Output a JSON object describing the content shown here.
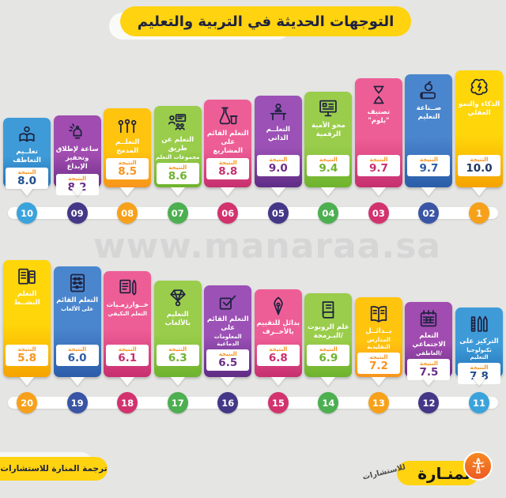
{
  "title": "التوجهات الحديثة في التربية والتعليم",
  "watermark": "www.manaraa.sa",
  "score_label": "النتيجة",
  "footer": {
    "credit": "ترجمة المنارة للاستشارات",
    "brand_name": "المنـارة",
    "brand_sub": "للاستشارات",
    "brand_logo_icon": "lighthouse-icon"
  },
  "colors": {
    "background": "#E5E5E4",
    "accent_yellow": "#FFD30F",
    "title_text": "#1E2240",
    "score_label_color": "#F7941D",
    "timeline_bar": "#FFFFFF"
  },
  "trends": [
    {
      "rank": 1,
      "badge": "1",
      "title": "الذكاء والنمو العقلي",
      "subtitle": "",
      "score": "10.0",
      "icon": "brain-icon",
      "theme": {
        "top": "#FFD60A",
        "bottom": "#F5A300",
        "score": "#1F3864",
        "badge": "#F7A11B"
      }
    },
    {
      "rank": 2,
      "badge": "02",
      "title": "صــناعة التعليم",
      "subtitle": "",
      "score": "9.7",
      "icon": "book-apple-icon",
      "theme": {
        "top": "#4A86CE",
        "bottom": "#2B5DA9",
        "score": "#2B5DA9",
        "badge": "#3A55A5"
      }
    },
    {
      "rank": 3,
      "badge": "03",
      "title": "تصنيف \"بلوم\"",
      "subtitle": "",
      "score": "9.7",
      "icon": "hourglass-icon",
      "theme": {
        "top": "#EE5E96",
        "bottom": "#C72F6F",
        "score": "#C72F6F",
        "badge": "#D2336E"
      }
    },
    {
      "rank": 4,
      "badge": "04",
      "title": "محو الأمية الرقمية",
      "subtitle": "",
      "score": "9.4",
      "icon": "monitor-icon",
      "theme": {
        "top": "#9ACD4B",
        "bottom": "#6EB32D",
        "score": "#6EB32D",
        "badge": "#4CAF50"
      }
    },
    {
      "rank": 5,
      "badge": "05",
      "title": "التعلــم الذاتي",
      "subtitle": "",
      "score": "9.0",
      "icon": "person-desk-icon",
      "theme": {
        "top": "#9C51B6",
        "bottom": "#5E2C86",
        "score": "#6A2D87",
        "badge": "#443787"
      }
    },
    {
      "rank": 6,
      "badge": "06",
      "title": "التعلم القائم على المشاريع",
      "subtitle": "",
      "score": "8.8",
      "icon": "flasks-icon",
      "theme": {
        "top": "#EE5E96",
        "bottom": "#C72F6F",
        "score": "#C72F6F",
        "badge": "#D2336E"
      }
    },
    {
      "rank": 7,
      "badge": "07",
      "title": "التعلم عن طريق",
      "subtitle": "مجموعات التعلم",
      "score": "8.6",
      "icon": "group-presentation-icon",
      "theme": {
        "top": "#9ACD4B",
        "bottom": "#6EB32D",
        "score": "#6EB32D",
        "badge": "#4CAF50"
      }
    },
    {
      "rank": 8,
      "badge": "08",
      "title": "التعلــم المدمج",
      "subtitle": "",
      "score": "8.5",
      "icon": "raised-hands-icon",
      "theme": {
        "top": "#FFC40E",
        "bottom": "#F7941D",
        "score": "#F7941D",
        "badge": "#F7A11B"
      }
    },
    {
      "rank": 9,
      "badge": "09",
      "title": "ساعة لإطلاق وتحفيز الإبداع",
      "subtitle": "",
      "score": "8.2",
      "icon": "alarm-bell-icon",
      "theme": {
        "top": "#A14CB0",
        "bottom": "#6A2D87",
        "score": "#6A2D87",
        "badge": "#443787"
      }
    },
    {
      "rank": 10,
      "badge": "10",
      "title": "تعلــيم التعاطف",
      "subtitle": "",
      "score": "8.0",
      "icon": "reading-book-icon",
      "theme": {
        "top": "#3E9BD8",
        "bottom": "#2472B8",
        "score": "#1F4E8C",
        "badge": "#3BA3DC"
      }
    },
    {
      "rank": 11,
      "badge": "11",
      "title": "التركيز على",
      "subtitle": "تكنولوجيا التعليم",
      "score": "7.8",
      "icon": "stationery-icon",
      "theme": {
        "top": "#3E9BD8",
        "bottom": "#2472B8",
        "score": "#1F4E8C",
        "badge": "#3BA3DC"
      }
    },
    {
      "rank": 12,
      "badge": "12",
      "title": "التعلم الاجتماعي",
      "subtitle": "/العاطفي",
      "score": "7.5",
      "icon": "calendar-icon",
      "theme": {
        "top": "#A14CB0",
        "bottom": "#6A2D87",
        "score": "#6A2D87",
        "badge": "#443787"
      }
    },
    {
      "rank": 13,
      "badge": "13",
      "title": "بــدائــل",
      "subtitle": "المدارس التقليدية",
      "score": "7.2",
      "icon": "open-book-icon",
      "theme": {
        "top": "#FFC40E",
        "bottom": "#F7941D",
        "score": "#F7941D",
        "badge": "#F7A11B"
      }
    },
    {
      "rank": 14,
      "badge": "14",
      "title": "علم الروبوت /البـرمجة",
      "subtitle": "",
      "score": "6.9",
      "icon": "book-icon",
      "theme": {
        "top": "#9ACD4B",
        "bottom": "#6EB32D",
        "score": "#6EB32D",
        "badge": "#4CAF50"
      }
    },
    {
      "rank": 15,
      "badge": "15",
      "title": "بدائل للتقييم بالأحــرف",
      "subtitle": "",
      "score": "6.8",
      "icon": "pen-nib-icon",
      "theme": {
        "top": "#EE5E96",
        "bottom": "#C72F6F",
        "score": "#C72F6F",
        "badge": "#D2336E"
      }
    },
    {
      "rank": 16,
      "badge": "16",
      "title": "التعلم القائم على",
      "subtitle": "المعلومات الدماغية",
      "score": "6.5",
      "icon": "checkbox-icon",
      "theme": {
        "top": "#9C51B6",
        "bottom": "#5E2C86",
        "score": "#6A2D87",
        "badge": "#443787"
      }
    },
    {
      "rank": 17,
      "badge": "17",
      "title": "التعليم بالألعاب",
      "subtitle": "",
      "score": "6.3",
      "icon": "medal-icon",
      "theme": {
        "top": "#9ACD4B",
        "bottom": "#6EB32D",
        "score": "#6EB32D",
        "badge": "#4CAF50"
      }
    },
    {
      "rank": 18,
      "badge": "18",
      "title": "خــوارزمـيات",
      "subtitle": "التعلم التكيفي",
      "score": "6.1",
      "icon": "notebook-pencil-icon",
      "theme": {
        "top": "#EE5E96",
        "bottom": "#C72F6F",
        "score": "#C72F6F",
        "badge": "#D2336E"
      }
    },
    {
      "rank": 19,
      "badge": "19",
      "title": "التعلم القائم",
      "subtitle": "على الألعاب",
      "score": "6.0",
      "icon": "abacus-icon",
      "theme": {
        "top": "#4A86CE",
        "bottom": "#2B5DA9",
        "score": "#2B5DA9",
        "badge": "#3A55A5"
      }
    },
    {
      "rank": 20,
      "badge": "20",
      "title": "التعلم النشــط",
      "subtitle": "",
      "score": "5.8",
      "icon": "tablet-book-icon",
      "theme": {
        "top": "#FFD60A",
        "bottom": "#F5A300",
        "score": "#F7941D",
        "badge": "#F7A11B"
      }
    }
  ],
  "chart_data": {
    "type": "bar",
    "title": "التوجهات الحديثة في التربية والتعليم",
    "categories": [
      "الذكاء والنمو العقلي",
      "صناعة التعليم",
      "تصنيف \"بلوم\"",
      "محو الأمية الرقمية",
      "التعلم الذاتي",
      "التعلم القائم على المشاريع",
      "التعلم عن طريق مجموعات التعلم",
      "التعلم المدمج",
      "ساعة لإطلاق وتحفيز الإبداع",
      "تعليم التعاطف",
      "التركيز على تكنولوجيا التعليم",
      "التعلم الاجتماعي/العاطفي",
      "بدائل المدارس التقليدية",
      "علم الروبوت/البرمجة",
      "بدائل للتقييم بالأحرف",
      "التعلم القائم على المعلومات الدماغية",
      "التعليم بالألعاب",
      "خوارزميات التعلم التكيفي",
      "التعلم القائم على الألعاب",
      "التعلم النشط"
    ],
    "values": [
      10.0,
      9.7,
      9.7,
      9.4,
      9.0,
      8.8,
      8.6,
      8.5,
      8.2,
      8.0,
      7.8,
      7.5,
      7.2,
      6.9,
      6.8,
      6.5,
      6.3,
      6.1,
      6.0,
      5.8
    ],
    "ranks": [
      1,
      2,
      3,
      4,
      5,
      6,
      7,
      8,
      9,
      10,
      11,
      12,
      13,
      14,
      15,
      16,
      17,
      18,
      19,
      20
    ],
    "xlabel": "",
    "ylabel": "النتيجة",
    "ylim": [
      0,
      10
    ],
    "layout": "two ranked rows of pennant bars, right-to-left, ranks 1-10 top and 11-20 bottom",
    "legend": false,
    "grid": false
  }
}
